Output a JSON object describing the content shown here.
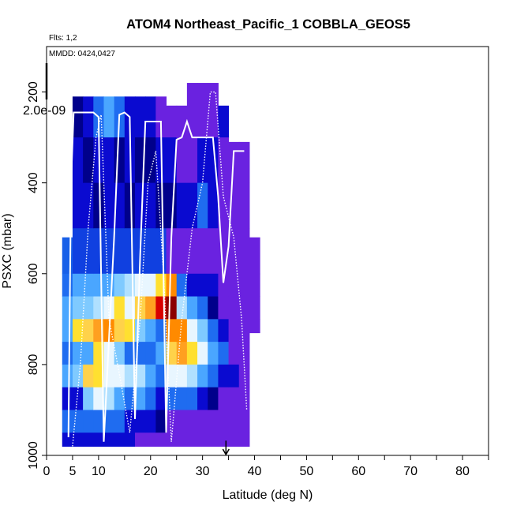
{
  "chart_data": {
    "type": "heatmap",
    "title": "ATOM4 Northeast_Pacific_1 COBBLA_GEOS5",
    "flights_note": "Flts: 1,2",
    "date_note": "MMDD: 0424,0427",
    "scale_label": "2.0e-09",
    "xlabel": "Latitude (deg N)",
    "ylabel": "PSXC (mbar)",
    "xlim": [
      0,
      85
    ],
    "ylim": [
      1000,
      100
    ],
    "x_ticks": [
      0,
      5,
      10,
      20,
      30,
      40,
      50,
      60,
      70,
      80
    ],
    "y_ticks": [
      200,
      400,
      600,
      800,
      1000
    ],
    "colors": {
      "dark_blue": "#00008b",
      "blue": "#0a0ad0",
      "violet": "#6a22e0",
      "mid_blue": "#1f6cf0",
      "light_blue": "#7fcaff",
      "pale": "#e8f6ff",
      "yellow": "#ffe030",
      "orange": "#ff8a00",
      "red": "#d80000",
      "dark_red": "#8b0000",
      "track": "#ffffff"
    },
    "curtain_columns": [
      {
        "lat": 4,
        "p": [
          520,
          980
        ],
        "cells": [
          [
            600,
            "#1860e8"
          ],
          [
            650,
            "#1f6cf0"
          ],
          [
            700,
            "#4aa6ff"
          ],
          [
            750,
            "#4aa6ff"
          ],
          [
            800,
            "#1f6cf0"
          ],
          [
            850,
            "#4aa6ff"
          ],
          [
            900,
            "#0a0ad0"
          ],
          [
            950,
            "#1f6cf0"
          ],
          [
            980,
            "#0a0ad0"
          ]
        ]
      },
      {
        "lat": 6,
        "p": [
          210,
          980
        ],
        "cells": [
          [
            300,
            "#00008b"
          ],
          [
            400,
            "#0a0ad0"
          ],
          [
            500,
            "#0a0ad0"
          ],
          [
            600,
            "#1040e0"
          ],
          [
            650,
            "#4aa6ff"
          ],
          [
            700,
            "#7fcaff"
          ],
          [
            750,
            "#ffe030"
          ],
          [
            800,
            "#4aa6ff"
          ],
          [
            850,
            "#7fcaff"
          ],
          [
            900,
            "#0a0ad0"
          ],
          [
            950,
            "#1f6cf0"
          ],
          [
            980,
            "#0a0ad0"
          ]
        ]
      },
      {
        "lat": 8,
        "p": [
          210,
          980
        ],
        "cells": [
          [
            300,
            "#0a0ad0"
          ],
          [
            400,
            "#00008b"
          ],
          [
            500,
            "#0a0ad0"
          ],
          [
            600,
            "#1040e0"
          ],
          [
            650,
            "#4aa6ff"
          ],
          [
            700,
            "#7fcaff"
          ],
          [
            750,
            "#ffd24a"
          ],
          [
            800,
            "#4aa6ff"
          ],
          [
            850,
            "#ffd24a"
          ],
          [
            900,
            "#7fcaff"
          ],
          [
            950,
            "#1f6cf0"
          ],
          [
            980,
            "#0a0ad0"
          ]
        ]
      },
      {
        "lat": 10,
        "p": [
          210,
          980
        ],
        "cells": [
          [
            300,
            "#1f6cf0"
          ],
          [
            400,
            "#0a0ad0"
          ],
          [
            500,
            "#00008b"
          ],
          [
            600,
            "#1040e0"
          ],
          [
            650,
            "#4aa6ff"
          ],
          [
            700,
            "#b0e0ff"
          ],
          [
            750,
            "#ffa020"
          ],
          [
            800,
            "#ffe030"
          ],
          [
            850,
            "#ffe030"
          ],
          [
            900,
            "#e8f6ff"
          ],
          [
            950,
            "#1f6cf0"
          ],
          [
            980,
            "#0a0ad0"
          ]
        ]
      },
      {
        "lat": 12,
        "p": [
          210,
          980
        ],
        "cells": [
          [
            300,
            "#4aa6ff"
          ],
          [
            400,
            "#0a0ad0"
          ],
          [
            500,
            "#0a0ad0"
          ],
          [
            600,
            "#1040e0"
          ],
          [
            650,
            "#4aa6ff"
          ],
          [
            700,
            "#e8f6ff"
          ],
          [
            750,
            "#ff8a00"
          ],
          [
            800,
            "#e8f6ff"
          ],
          [
            850,
            "#e8f6ff"
          ],
          [
            900,
            "#b0e0ff"
          ],
          [
            950,
            "#1f6cf0"
          ],
          [
            980,
            "#0a0ad0"
          ]
        ]
      },
      {
        "lat": 14,
        "p": [
          210,
          980
        ],
        "cells": [
          [
            300,
            "#1f6cf0"
          ],
          [
            400,
            "#00008b"
          ],
          [
            500,
            "#0a0ad0"
          ],
          [
            600,
            "#1040e0"
          ],
          [
            650,
            "#7fcaff"
          ],
          [
            700,
            "#ffe030"
          ],
          [
            750,
            "#ffd24a"
          ],
          [
            800,
            "#7fcaff"
          ],
          [
            850,
            "#e8f6ff"
          ],
          [
            900,
            "#4aa6ff"
          ],
          [
            950,
            "#1f6cf0"
          ],
          [
            980,
            "#0a0ad0"
          ]
        ]
      },
      {
        "lat": 16,
        "p": [
          210,
          980
        ],
        "cells": [
          [
            300,
            "#0a0ad0"
          ],
          [
            400,
            "#0a0ad0"
          ],
          [
            500,
            "#00008b"
          ],
          [
            600,
            "#1040e0"
          ],
          [
            650,
            "#b0e0ff"
          ],
          [
            700,
            "#e8f6ff"
          ],
          [
            750,
            "#ffe030"
          ],
          [
            800,
            "#1f6cf0"
          ],
          [
            850,
            "#b0e0ff"
          ],
          [
            900,
            "#1f6cf0"
          ],
          [
            950,
            "#0a0ad0"
          ],
          [
            980,
            "#0a0ad0"
          ]
        ]
      },
      {
        "lat": 18,
        "p": [
          210,
          980
        ],
        "cells": [
          [
            300,
            "#0a0ad0"
          ],
          [
            400,
            "#00008b"
          ],
          [
            500,
            "#0a0ad0"
          ],
          [
            600,
            "#1040e0"
          ],
          [
            650,
            "#e8f6ff"
          ],
          [
            700,
            "#ffd24a"
          ],
          [
            750,
            "#7fcaff"
          ],
          [
            800,
            "#1f6cf0"
          ],
          [
            850,
            "#b0e0ff"
          ],
          [
            900,
            "#4aa6ff"
          ],
          [
            950,
            "#0a0ad0"
          ],
          [
            980,
            "#6a22e0"
          ]
        ]
      },
      {
        "lat": 20,
        "p": [
          210,
          980
        ],
        "cells": [
          [
            300,
            "#0a0ad0"
          ],
          [
            400,
            "#00008b"
          ],
          [
            500,
            "#0a0ad0"
          ],
          [
            600,
            "#1040e0"
          ],
          [
            650,
            "#e8f6ff"
          ],
          [
            700,
            "#ffa020"
          ],
          [
            750,
            "#4aa6ff"
          ],
          [
            800,
            "#1f6cf0"
          ],
          [
            850,
            "#4aa6ff"
          ],
          [
            900,
            "#1f6cf0"
          ],
          [
            950,
            "#0a0ad0"
          ],
          [
            980,
            "#6a22e0"
          ]
        ]
      },
      {
        "lat": 22,
        "p": [
          210,
          980
        ],
        "cells": [
          [
            300,
            "#6a22e0"
          ],
          [
            400,
            "#0a0ad0"
          ],
          [
            500,
            "#00008b"
          ],
          [
            600,
            "#1040e0"
          ],
          [
            650,
            "#ffe030"
          ],
          [
            700,
            "#d80000"
          ],
          [
            750,
            "#1f6cf0"
          ],
          [
            800,
            "#4aa6ff"
          ],
          [
            850,
            "#1f6cf0"
          ],
          [
            900,
            "#0a0ad0"
          ],
          [
            950,
            "#00008b"
          ],
          [
            980,
            "#6a22e0"
          ]
        ]
      },
      {
        "lat": 24,
        "p": [
          230,
          980
        ],
        "cells": [
          [
            300,
            "#6a22e0"
          ],
          [
            400,
            "#0a0ad0"
          ],
          [
            500,
            "#00008b"
          ],
          [
            600,
            "#6a22e0"
          ],
          [
            650,
            "#ff8a00"
          ],
          [
            700,
            "#8b0000"
          ],
          [
            750,
            "#ff8a00"
          ],
          [
            800,
            "#ffd24a"
          ],
          [
            850,
            "#e8f6ff"
          ],
          [
            900,
            "#1f6cf0"
          ],
          [
            950,
            "#6a22e0"
          ],
          [
            980,
            "#6a22e0"
          ]
        ]
      },
      {
        "lat": 26,
        "p": [
          230,
          980
        ],
        "cells": [
          [
            300,
            "#6a22e0"
          ],
          [
            400,
            "#6a22e0"
          ],
          [
            500,
            "#0a0ad0"
          ],
          [
            600,
            "#6a22e0"
          ],
          [
            650,
            "#1f6cf0"
          ],
          [
            700,
            "#b0e0ff"
          ],
          [
            750,
            "#ff8a00"
          ],
          [
            800,
            "#ffa020"
          ],
          [
            850,
            "#e8f6ff"
          ],
          [
            900,
            "#1f6cf0"
          ],
          [
            950,
            "#6a22e0"
          ],
          [
            980,
            "#6a22e0"
          ]
        ]
      },
      {
        "lat": 28,
        "p": [
          180,
          980
        ],
        "cells": [
          [
            300,
            "#6a22e0"
          ],
          [
            400,
            "#6a22e0"
          ],
          [
            500,
            "#0a0ad0"
          ],
          [
            600,
            "#6a22e0"
          ],
          [
            650,
            "#0a0ad0"
          ],
          [
            700,
            "#4aa6ff"
          ],
          [
            750,
            "#e8f6ff"
          ],
          [
            800,
            "#ffe030"
          ],
          [
            850,
            "#b0e0ff"
          ],
          [
            900,
            "#1f6cf0"
          ],
          [
            950,
            "#6a22e0"
          ],
          [
            980,
            "#6a22e0"
          ]
        ]
      },
      {
        "lat": 30,
        "p": [
          180,
          980
        ],
        "cells": [
          [
            300,
            "#6a22e0"
          ],
          [
            400,
            "#0a0ad0"
          ],
          [
            500,
            "#1f6cf0"
          ],
          [
            600,
            "#6a22e0"
          ],
          [
            650,
            "#0a0ad0"
          ],
          [
            700,
            "#1f6cf0"
          ],
          [
            750,
            "#7fcaff"
          ],
          [
            800,
            "#e8f6ff"
          ],
          [
            850,
            "#4aa6ff"
          ],
          [
            900,
            "#0a0ad0"
          ],
          [
            950,
            "#6a22e0"
          ],
          [
            980,
            "#6a22e0"
          ]
        ]
      },
      {
        "lat": 32,
        "p": [
          180,
          980
        ],
        "cells": [
          [
            300,
            "#6a22e0"
          ],
          [
            400,
            "#0a0ad0"
          ],
          [
            500,
            "#0a0ad0"
          ],
          [
            600,
            "#6a22e0"
          ],
          [
            650,
            "#0a0ad0"
          ],
          [
            700,
            "#00008b"
          ],
          [
            750,
            "#1f6cf0"
          ],
          [
            800,
            "#4aa6ff"
          ],
          [
            850,
            "#1f6cf0"
          ],
          [
            900,
            "#00008b"
          ],
          [
            950,
            "#6a22e0"
          ],
          [
            980,
            "#6a22e0"
          ]
        ]
      },
      {
        "lat": 34,
        "p": [
          230,
          980
        ],
        "cells": [
          [
            300,
            "#0a0ad0"
          ],
          [
            400,
            "#6a22e0"
          ],
          [
            500,
            "#6a22e0"
          ],
          [
            600,
            "#6a22e0"
          ],
          [
            650,
            "#6a22e0"
          ],
          [
            700,
            "#6a22e0"
          ],
          [
            750,
            "#0a0ad0"
          ],
          [
            800,
            "#1f6cf0"
          ],
          [
            850,
            "#0a0ad0"
          ],
          [
            900,
            "#6a22e0"
          ],
          [
            950,
            "#6a22e0"
          ],
          [
            980,
            "#6a22e0"
          ]
        ]
      },
      {
        "lat": 36,
        "p": [
          310,
          980
        ],
        "cells": [
          [
            400,
            "#6a22e0"
          ],
          [
            500,
            "#6a22e0"
          ],
          [
            600,
            "#6a22e0"
          ],
          [
            650,
            "#6a22e0"
          ],
          [
            700,
            "#6a22e0"
          ],
          [
            750,
            "#6a22e0"
          ],
          [
            800,
            "#6a22e0"
          ],
          [
            850,
            "#0a0ad0"
          ],
          [
            900,
            "#6a22e0"
          ],
          [
            950,
            "#6a22e0"
          ],
          [
            980,
            "#6a22e0"
          ]
        ]
      },
      {
        "lat": 38,
        "p": [
          310,
          980
        ],
        "cells": [
          [
            400,
            "#6a22e0"
          ],
          [
            500,
            "#6a22e0"
          ],
          [
            600,
            "#6a22e0"
          ],
          [
            650,
            "#6a22e0"
          ],
          [
            700,
            "#6a22e0"
          ],
          [
            750,
            "#6a22e0"
          ],
          [
            800,
            "#6a22e0"
          ],
          [
            850,
            "#6a22e0"
          ],
          [
            900,
            "#6a22e0"
          ],
          [
            950,
            "#6a22e0"
          ],
          [
            980,
            "#6a22e0"
          ]
        ]
      },
      {
        "lat": 40,
        "p": [
          520,
          730
        ],
        "cells": [
          [
            600,
            "#6a22e0"
          ],
          [
            650,
            "#6a22e0"
          ],
          [
            700,
            "#6a22e0"
          ],
          [
            730,
            "#6a22e0"
          ]
        ]
      }
    ],
    "flight_tracks": [
      {
        "lat": [
          4.2,
          4.7,
          5.2,
          6,
          9,
          10,
          11,
          13,
          14,
          15,
          16,
          17,
          18,
          19,
          20,
          21,
          22,
          23,
          24,
          25,
          26,
          27,
          28,
          29,
          30,
          31,
          32,
          33,
          34,
          35,
          36,
          37,
          38
        ],
        "p": [
          960,
          400,
          245,
          245,
          245,
          255,
          970,
          520,
          250,
          245,
          255,
          920,
          560,
          265,
          265,
          265,
          265,
          950,
          520,
          305,
          300,
          265,
          300,
          300,
          300,
          300,
          300,
          430,
          620,
          540,
          330,
          330,
          330
        ]
      },
      {
        "lat": [
          5,
          6.5,
          8,
          9.5,
          10.5,
          12,
          14,
          16,
          18,
          19.5,
          21,
          22.5,
          24,
          26,
          28,
          30,
          31.5,
          32.5,
          34,
          36,
          37.5,
          38.5
        ],
        "p": [
          980,
          800,
          500,
          300,
          250,
          700,
          820,
          950,
          700,
          400,
          330,
          600,
          970,
          700,
          500,
          400,
          200,
          200,
          430,
          520,
          700,
          900
        ]
      }
    ],
    "marker": {
      "lat": 34.5,
      "p_from": 985,
      "p_to": 1000
    }
  }
}
